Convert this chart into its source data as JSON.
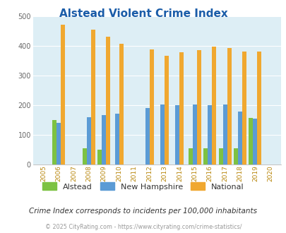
{
  "title": "Alstead Violent Crime Index",
  "years": [
    2005,
    2006,
    2007,
    2008,
    2009,
    2010,
    2011,
    2012,
    2013,
    2014,
    2015,
    2016,
    2017,
    2018,
    2019,
    2020
  ],
  "alstead": [
    null,
    150,
    null,
    55,
    50,
    null,
    null,
    null,
    null,
    null,
    55,
    55,
    55,
    55,
    157,
    null
  ],
  "new_hampshire": [
    null,
    140,
    null,
    160,
    165,
    170,
    null,
    190,
    203,
    200,
    203,
    200,
    203,
    178,
    155,
    null
  ],
  "national": [
    null,
    472,
    null,
    454,
    432,
    406,
    null,
    387,
    367,
    379,
    385,
    398,
    394,
    382,
    380,
    null
  ],
  "color_alstead": "#7dc242",
  "color_nh": "#5b9bd5",
  "color_national": "#f0a830",
  "bg_color": "#ddeef5",
  "ylim": [
    0,
    500
  ],
  "yticks": [
    0,
    100,
    200,
    300,
    400,
    500
  ],
  "subtitle": "Crime Index corresponds to incidents per 100,000 inhabitants",
  "footer": "© 2025 CityRating.com - https://www.cityrating.com/crime-statistics/",
  "bar_width": 0.28
}
